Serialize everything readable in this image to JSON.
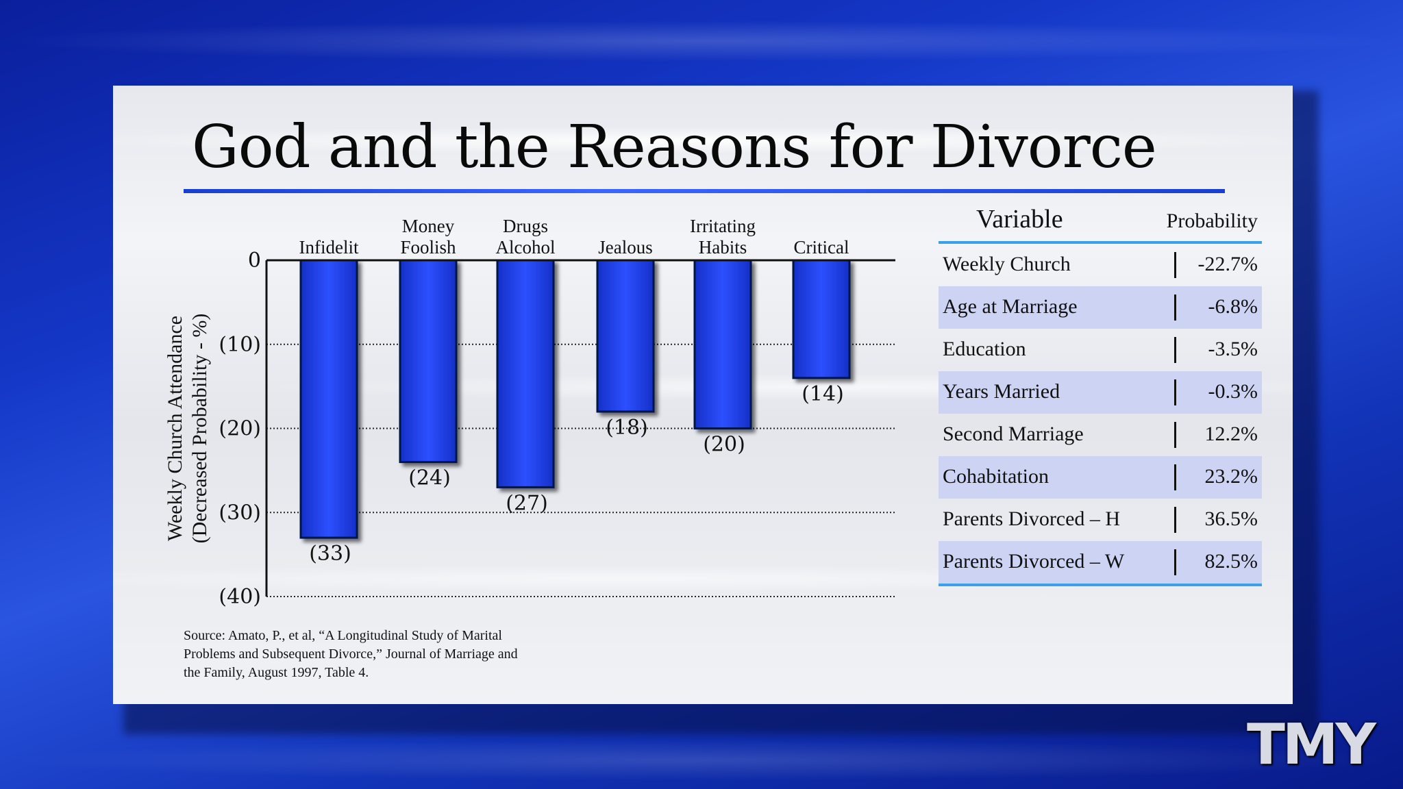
{
  "slide": {
    "title": "God and the Reasons for Divorce",
    "source": "Source: Amato, P., et al, “A Longitudinal Study of Marital Problems and Subsequent Divorce,” Journal of Marriage and the Family, August 1997, Table 4."
  },
  "chart_data": {
    "type": "bar",
    "title": "",
    "xlabel": "",
    "ylabel": "Weekly Church Attendance (Decreased Probability - %)",
    "ylabel_lines": [
      "Weekly Church Attendance",
      "(Decreased Probability - %)"
    ],
    "categories": [
      [
        "Infidelit"
      ],
      [
        "Money",
        "Foolish"
      ],
      [
        "Drugs",
        "Alcohol"
      ],
      [
        "Jealous"
      ],
      [
        "Irritating",
        "Habits"
      ],
      [
        "Critical"
      ]
    ],
    "values": [
      -33,
      -24,
      -27,
      -18,
      -20,
      -14
    ],
    "value_labels": [
      "(33)",
      "(24)",
      "(27)",
      "(18)",
      "(20)",
      "(14)"
    ],
    "ylim": [
      -40,
      0
    ],
    "yticks": [
      0,
      -10,
      -20,
      -30,
      -40
    ],
    "ytick_labels": [
      "0",
      "(10)",
      "(20)",
      "(30)",
      "(40)"
    ],
    "grid": "dotted",
    "bar_color": "#1f3df0"
  },
  "table": {
    "header_variable": "Variable",
    "header_probability": "Probability",
    "rows": [
      {
        "label": "Weekly Church",
        "value": "-22.7%"
      },
      {
        "label": "Age at Marriage",
        "value": "-6.8%"
      },
      {
        "label": "Education",
        "value": "-3.5%"
      },
      {
        "label": "Years Married",
        "value": "-0.3%"
      },
      {
        "label": "Second Marriage",
        "value": "12.2%"
      },
      {
        "label": "Cohabitation",
        "value": "23.2%"
      },
      {
        "label": "Parents Divorced – H",
        "value": "36.5%"
      },
      {
        "label": "Parents Divorced – W",
        "value": "82.5%"
      }
    ]
  },
  "logo": {
    "text": "TMY"
  }
}
